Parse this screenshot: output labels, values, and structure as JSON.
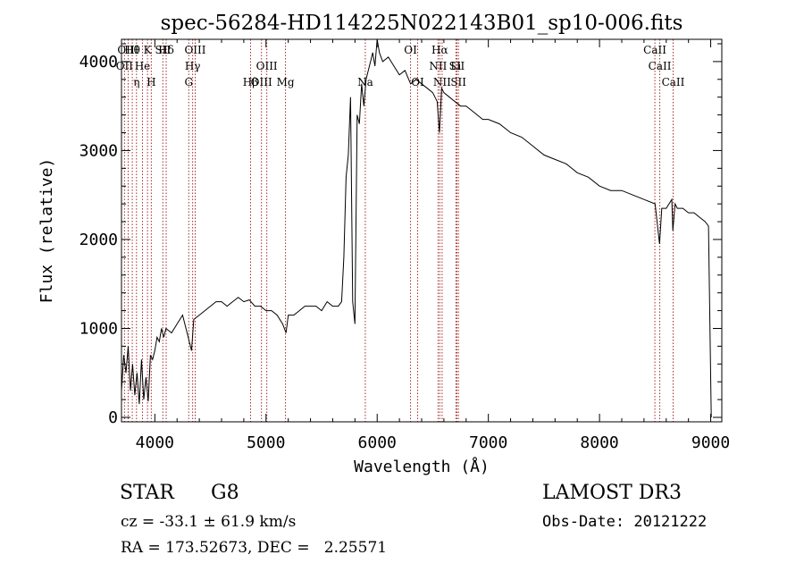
{
  "chart_data": {
    "type": "line",
    "title": "spec-56284-HD114225N022143B01_sp10-006.fits",
    "xlabel": "Wavelength (Å)",
    "ylabel": "Flux (relative)",
    "xlim": [
      3700,
      9100
    ],
    "ylim": [
      -50,
      4250
    ],
    "xticks": [
      4000,
      5000,
      6000,
      7000,
      8000,
      9000
    ],
    "yticks": [
      0,
      1000,
      2000,
      3000,
      4000
    ],
    "grid": false,
    "line_color": "#000000",
    "marker_color": "#a52a2a",
    "series": [
      {
        "x": [
          3700,
          3720,
          3740,
          3760,
          3780,
          3800,
          3820,
          3840,
          3860,
          3880,
          3900,
          3920,
          3940,
          3960,
          3980,
          4000,
          4020,
          4040,
          4060,
          4080,
          4100,
          4150,
          4200,
          4250,
          4300,
          4330,
          4350,
          4400,
          4450,
          4500,
          4550,
          4600,
          4650,
          4700,
          4750,
          4800,
          4850,
          4900,
          4950,
          5000,
          5050,
          5100,
          5150,
          5180,
          5200,
          5250,
          5300,
          5350,
          5400,
          5450,
          5500,
          5550,
          5600,
          5650,
          5680,
          5700,
          5720,
          5740,
          5760,
          5780,
          5800,
          5820,
          5840,
          5860,
          5880,
          5900,
          5920,
          5940,
          5960,
          5980,
          6000,
          6020,
          6050,
          6100,
          6150,
          6200,
          6250,
          6300,
          6350,
          6400,
          6450,
          6500,
          6540,
          6560,
          6580,
          6600,
          6650,
          6700,
          6750,
          6800,
          6850,
          6900,
          6950,
          7000,
          7100,
          7200,
          7300,
          7400,
          7500,
          7600,
          7700,
          7800,
          7900,
          8000,
          8100,
          8200,
          8300,
          8400,
          8500,
          8540,
          8560,
          8600,
          8650,
          8660,
          8680,
          8700,
          8750,
          8800,
          8850,
          8900,
          8950,
          8980,
          9000,
          9005
        ],
        "y": [
          300,
          700,
          500,
          800,
          300,
          600,
          250,
          500,
          150,
          650,
          200,
          450,
          180,
          700,
          650,
          750,
          900,
          850,
          1000,
          900,
          1000,
          950,
          1050,
          1150,
          900,
          750,
          1100,
          1150,
          1200,
          1250,
          1300,
          1300,
          1250,
          1300,
          1350,
          1300,
          1320,
          1250,
          1250,
          1200,
          1200,
          1150,
          1050,
          950,
          1150,
          1150,
          1200,
          1250,
          1250,
          1250,
          1200,
          1300,
          1250,
          1250,
          1300,
          1800,
          2700,
          2950,
          3600,
          1300,
          1050,
          3400,
          3300,
          3750,
          3500,
          3800,
          3900,
          4000,
          4100,
          3950,
          4250,
          4100,
          4000,
          4050,
          3950,
          3850,
          3900,
          3750,
          3800,
          3750,
          3700,
          3650,
          3550,
          3200,
          3700,
          3650,
          3600,
          3550,
          3500,
          3500,
          3450,
          3400,
          3350,
          3350,
          3300,
          3200,
          3150,
          3050,
          2950,
          2900,
          2850,
          2750,
          2700,
          2600,
          2550,
          2550,
          2500,
          2450,
          2400,
          1950,
          2350,
          2350,
          2450,
          2100,
          2400,
          2350,
          2350,
          2300,
          2300,
          2250,
          2200,
          2150,
          400,
          0
        ]
      }
    ],
    "lines": [
      {
        "label": "Hθ",
        "x": 3797
      },
      {
        "label": "OII",
        "x": 3727
      },
      {
        "label": "OIII",
        "x": 3760
      },
      {
        "label": "K",
        "x": 3934
      },
      {
        "label": "He",
        "x": 3889
      },
      {
        "label": "η",
        "x": 3835
      },
      {
        "label": "H",
        "x": 3968
      },
      {
        "label": "SII",
        "x": 4072
      },
      {
        "label": "Hδ",
        "x": 4102
      },
      {
        "label": "OIII",
        "x": 4363
      },
      {
        "label": "Hγ",
        "x": 4340
      },
      {
        "label": "G",
        "x": 4305
      },
      {
        "label": "OIII",
        "x": 5007
      },
      {
        "label": "OIII",
        "x": 4959
      },
      {
        "label": "Hβ",
        "x": 4861
      },
      {
        "label": "Mg",
        "x": 5175
      },
      {
        "label": "Na",
        "x": 5893
      },
      {
        "label": "OI",
        "x": 6300
      },
      {
        "label": "OI",
        "x": 6364
      },
      {
        "label": "Hα",
        "x": 6563
      },
      {
        "label": "NII",
        "x": 6548
      },
      {
        "label": "NII",
        "x": 6584
      },
      {
        "label": "SII",
        "x": 6717
      },
      {
        "label": "SII",
        "x": 6731
      },
      {
        "label": "Li",
        "x": 6708
      },
      {
        "label": "CaII",
        "x": 8498
      },
      {
        "label": "CaII",
        "x": 8542
      },
      {
        "label": "CaII",
        "x": 8662
      }
    ],
    "label_rows": [
      [
        "Hθ",
        "K",
        "Hδ",
        "OIII",
        "OIII",
        "OI",
        "Hα",
        "SII",
        "CaII"
      ],
      [
        "OII",
        "He",
        "SII",
        "Hγ",
        "OIII",
        "NII",
        "Li",
        "CaII"
      ],
      [
        "OIII",
        "η",
        "H",
        "G",
        "Hβ",
        "Mg",
        "Na",
        "OI",
        "NII",
        "SII",
        "CaII"
      ]
    ]
  },
  "info": {
    "object_class": "STAR",
    "subclass": "G8",
    "survey": "LAMOST DR3",
    "cz": "cz = -33.1 ± 61.9 km/s",
    "obs_date": "Obs-Date: 20121222",
    "coords": "RA = 173.52673, DEC =   2.25571"
  }
}
